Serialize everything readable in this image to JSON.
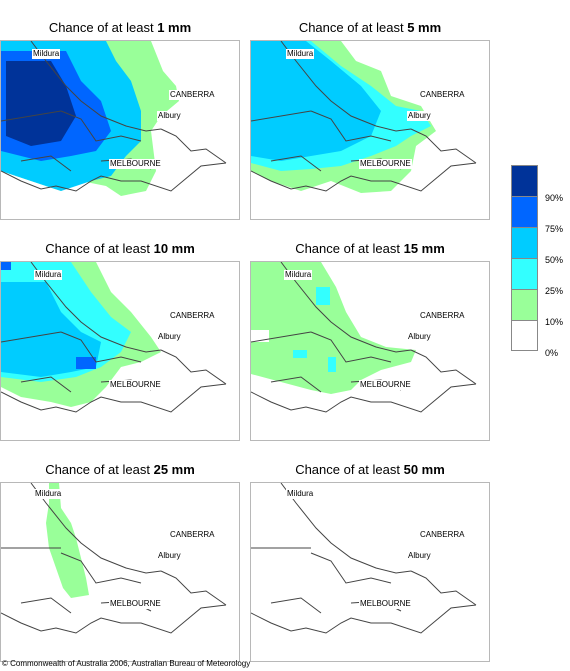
{
  "panels": [
    {
      "title_prefix": "Chance of at least ",
      "title_amount": "1 mm"
    },
    {
      "title_prefix": "Chance of at least ",
      "title_amount": "5 mm"
    },
    {
      "title_prefix": "Chance of at least ",
      "title_amount": "10 mm"
    },
    {
      "title_prefix": "Chance of at least ",
      "title_amount": "15 mm"
    },
    {
      "title_prefix": "Chance of at least ",
      "title_amount": "25 mm"
    },
    {
      "title_prefix": "Chance of at least ",
      "title_amount": "50 mm"
    }
  ],
  "places": {
    "mildura": "Mildura",
    "canberra": "CANBERRA",
    "albury": "Albury",
    "melbourne": "MELBOURNE"
  },
  "legend": {
    "colors": [
      "#003399",
      "#0066ff",
      "#00ccff",
      "#33ffff",
      "#99ff99",
      "#ffffff"
    ],
    "labels": [
      "90%",
      "75%",
      "50%",
      "25%",
      "10%",
      "0%"
    ]
  },
  "copyright": "© Commonwealth of Australia 2006, Australian Bureau of Meteorology"
}
